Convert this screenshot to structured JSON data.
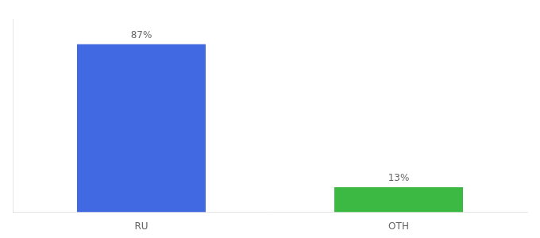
{
  "chart_data": {
    "type": "bar",
    "categories": [
      "RU",
      "OTH"
    ],
    "values": [
      87,
      13
    ],
    "value_labels": [
      "87%",
      "13%"
    ],
    "colors": [
      "#4169E1",
      "#3CB943"
    ],
    "ylim": [
      0,
      100
    ],
    "grid": false,
    "data_labels": true,
    "tick_labels": "x"
  }
}
